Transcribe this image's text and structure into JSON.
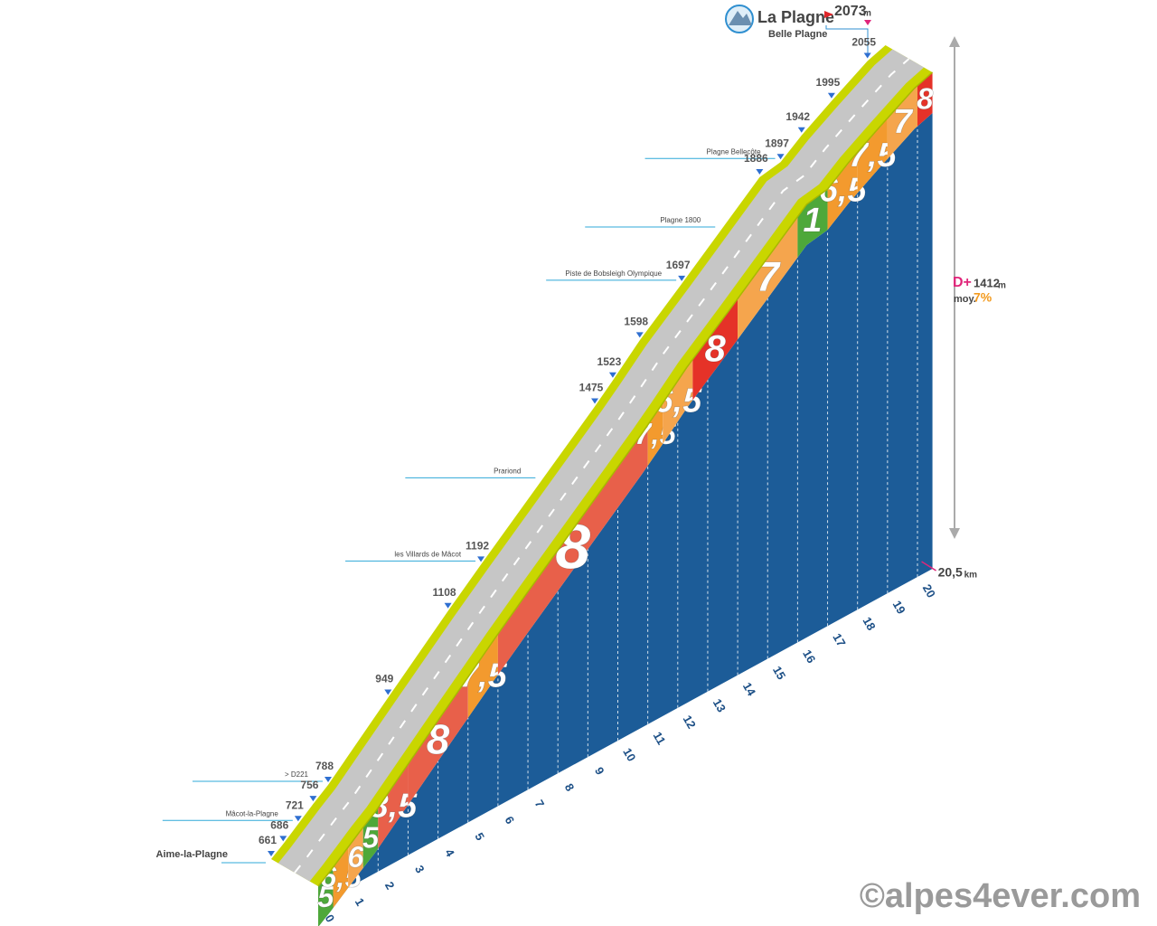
{
  "chart_data": {
    "type": "climb-profile",
    "title": "La Plagne",
    "subtitle": "Belle Plagne",
    "summit": {
      "value": 2073,
      "unit": "m"
    },
    "markers": [
      {
        "km": 0,
        "elevation": 661
      },
      {
        "km": 0.4,
        "elevation": 686
      },
      {
        "km": 0.9,
        "elevation": 721
      },
      {
        "km": 1.4,
        "elevation": 756
      },
      {
        "km": 1.9,
        "elevation": 788
      },
      {
        "km": 3.9,
        "elevation": 949
      },
      {
        "km": 5.9,
        "elevation": 1108
      },
      {
        "km": 7,
        "elevation": 1192
      },
      {
        "km": 10.8,
        "elevation": 1475
      },
      {
        "km": 11.4,
        "elevation": 1523
      },
      {
        "km": 12.3,
        "elevation": 1598
      },
      {
        "km": 13.7,
        "elevation": 1697
      },
      {
        "km": 16.3,
        "elevation": 1886
      },
      {
        "km": 17,
        "elevation": 1897
      },
      {
        "km": 17.7,
        "elevation": 1942
      },
      {
        "km": 18.7,
        "elevation": 1995
      },
      {
        "km": 19.9,
        "elevation": 2055
      },
      {
        "km": 20.5,
        "elevation": 2073
      }
    ],
    "places": [
      {
        "name": "Aime-la-Plagne",
        "km": 0
      },
      {
        "name": "Mâcot-la-Plagne",
        "km": 0.9
      },
      {
        "name": "> D221",
        "km": 1.9
      },
      {
        "name": "les Villards de Mâcot",
        "km": 7
      },
      {
        "name": "Prariond",
        "km": 9
      },
      {
        "name": "Piste de Bobsleigh Olympique",
        "km": 13.7
      },
      {
        "name": "Plagne 1800",
        "km": 15
      },
      {
        "name": "Plagne Bellecôte",
        "km": 17
      }
    ],
    "segments": [
      {
        "start": 0,
        "end": 0.5,
        "grade": 5,
        "label": "5",
        "color": "#4ea83a"
      },
      {
        "start": 0.5,
        "end": 1,
        "grade": 6.5,
        "label": "6,5",
        "color": "#f39a2e"
      },
      {
        "start": 1,
        "end": 1.5,
        "grade": 6,
        "label": "6",
        "color": "#f5a54d"
      },
      {
        "start": 1.5,
        "end": 2,
        "grade": 5,
        "label": "5",
        "color": "#4ea83a"
      },
      {
        "start": 2,
        "end": 3,
        "grade": 8.5,
        "label": "8,5",
        "color": "#e8604a"
      },
      {
        "start": 3,
        "end": 5,
        "grade": 8,
        "label": "8",
        "color": "#e8604a"
      },
      {
        "start": 5,
        "end": 6,
        "grade": 7.5,
        "label": "7,5",
        "color": "#f39a2e"
      },
      {
        "start": 6,
        "end": 11,
        "grade": 8,
        "label": "8",
        "color": "#e8604a"
      },
      {
        "start": 11,
        "end": 11.5,
        "grade": 7.5,
        "label": "7,5",
        "color": "#f39a2e"
      },
      {
        "start": 11.5,
        "end": 12.5,
        "grade": 6.5,
        "label": "6,5",
        "color": "#f5a54d"
      },
      {
        "start": 12.5,
        "end": 14,
        "grade": 8,
        "label": "8",
        "color": "#e53228"
      },
      {
        "start": 14,
        "end": 16,
        "grade": 7,
        "label": "7",
        "color": "#f5a54d"
      },
      {
        "start": 16,
        "end": 17,
        "grade": 1,
        "label": "1",
        "color": "#4ea83a"
      },
      {
        "start": 17,
        "end": 18,
        "grade": 6.5,
        "label": "6,5",
        "color": "#f39a2e"
      },
      {
        "start": 18,
        "end": 19,
        "grade": 7.5,
        "label": "7,5",
        "color": "#f39a2e"
      },
      {
        "start": 19,
        "end": 20,
        "grade": 7,
        "label": "7",
        "color": "#f5a54d"
      },
      {
        "start": 20,
        "end": 20.5,
        "grade": 8,
        "label": "8",
        "color": "#e53228"
      }
    ],
    "xticks": [
      0,
      1,
      2,
      3,
      4,
      5,
      6,
      7,
      8,
      9,
      10,
      11,
      12,
      13,
      14,
      15,
      16,
      17,
      18,
      19,
      20
    ],
    "distance": {
      "value": 20.5,
      "label": "20,5",
      "unit": "km"
    },
    "gain": {
      "label": "D+",
      "value": 1412,
      "unit": "m"
    },
    "average": {
      "label": "moy.",
      "value": 7,
      "value_label": "7%"
    },
    "credit": "©alpes4ever.com",
    "face_color": "#1c5c98"
  }
}
